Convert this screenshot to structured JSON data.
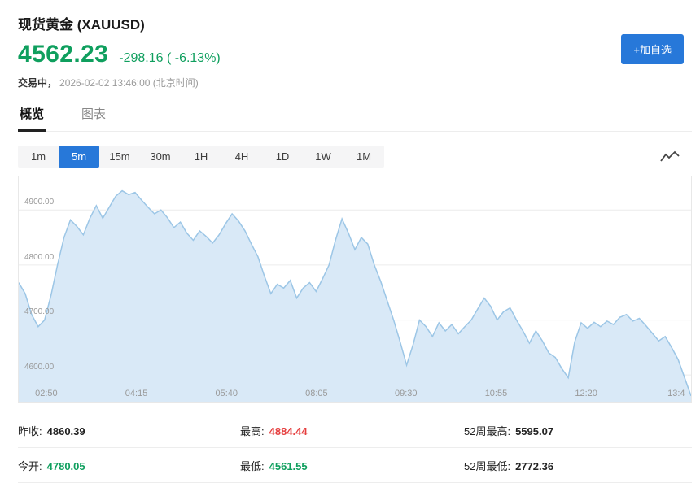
{
  "header": {
    "title": "现货黄金 (XAUUSD)",
    "price": "4562.23",
    "change": "-298.16 ( -6.13%)",
    "status_prefix": "交易中，",
    "status_time": "2026-02-02 13:46:00 (北京时间)",
    "watchlist_button": "+加自选"
  },
  "tabs": [
    {
      "label": "概览",
      "active": true
    },
    {
      "label": "图表",
      "active": false
    }
  ],
  "intervals": [
    {
      "label": "1m",
      "active": false
    },
    {
      "label": "5m",
      "active": true
    },
    {
      "label": "15m",
      "active": false
    },
    {
      "label": "30m",
      "active": false
    },
    {
      "label": "1H",
      "active": false
    },
    {
      "label": "4H",
      "active": false
    },
    {
      "label": "1D",
      "active": false
    },
    {
      "label": "1W",
      "active": false
    },
    {
      "label": "1M",
      "active": false
    }
  ],
  "chart_data": {
    "type": "area",
    "interval": "5m",
    "y_tick_labels": [
      "4900.00",
      "4800.00",
      "4700.00",
      "4600.00"
    ],
    "y_gridlines": [
      4900,
      4800,
      4700,
      4600
    ],
    "ylim": [
      4551,
      4960
    ],
    "x_tick_labels": [
      "02:50",
      "04:15",
      "05:40",
      "08:05",
      "09:30",
      "10:55",
      "12:20",
      "13:4"
    ],
    "x_tick_positions_pct": [
      4.1,
      17.5,
      30.9,
      44.3,
      57.6,
      71.0,
      84.4,
      97.8
    ],
    "values": [
      4768,
      4748,
      4710,
      4688,
      4700,
      4745,
      4800,
      4850,
      4882,
      4870,
      4855,
      4885,
      4908,
      4885,
      4905,
      4925,
      4935,
      4928,
      4932,
      4918,
      4905,
      4893,
      4900,
      4886,
      4868,
      4878,
      4858,
      4845,
      4862,
      4852,
      4840,
      4855,
      4875,
      4893,
      4880,
      4862,
      4838,
      4815,
      4780,
      4748,
      4765,
      4758,
      4772,
      4740,
      4758,
      4768,
      4752,
      4775,
      4800,
      4845,
      4884,
      4858,
      4828,
      4850,
      4838,
      4800,
      4770,
      4735,
      4700,
      4660,
      4618,
      4655,
      4700,
      4688,
      4670,
      4695,
      4680,
      4692,
      4675,
      4688,
      4700,
      4720,
      4740,
      4725,
      4700,
      4715,
      4722,
      4700,
      4680,
      4658,
      4680,
      4662,
      4640,
      4632,
      4612,
      4595,
      4660,
      4695,
      4685,
      4696,
      4688,
      4698,
      4692,
      4705,
      4710,
      4698,
      4703,
      4690,
      4676,
      4662,
      4670,
      4650,
      4628,
      4595,
      4562
    ]
  },
  "stats": {
    "cells": [
      {
        "label": "昨收:",
        "value": "4860.39",
        "color": "default"
      },
      {
        "label": "最高:",
        "value": "4884.44",
        "color": "red"
      },
      {
        "label": "52周最高:",
        "value": "5595.07",
        "color": "default"
      },
      {
        "label": "今开:",
        "value": "4780.05",
        "color": "green"
      },
      {
        "label": "最低:",
        "value": "4561.55",
        "color": "green"
      },
      {
        "label": "52周最低:",
        "value": "2772.36",
        "color": "default"
      }
    ]
  },
  "colors": {
    "green": "#0f9f5e",
    "red": "#e53e3e",
    "accent_blue": "#2778d9",
    "chart_fill": "#d9e9f7",
    "chart_line": "#9cc6e6",
    "grid_line": "#ececec",
    "axis_text": "#999999"
  }
}
